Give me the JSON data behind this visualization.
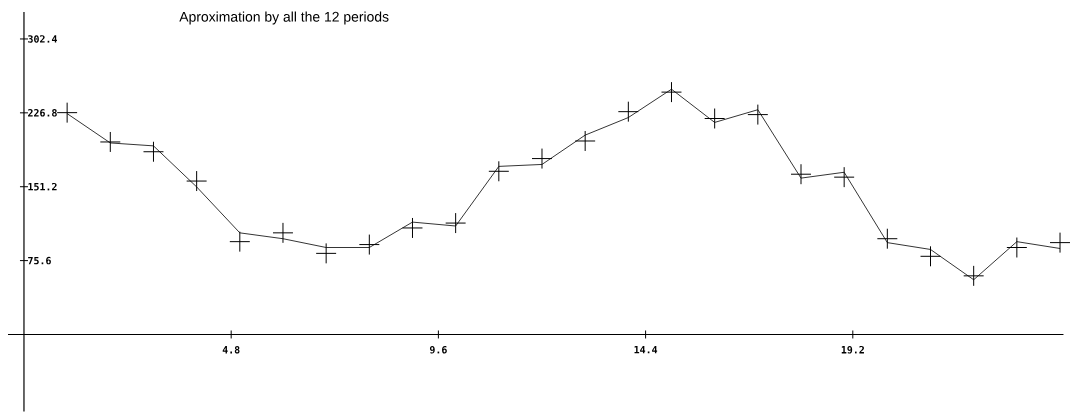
{
  "chart_data": {
    "type": "line",
    "title": "Aproximation by all the 12 periods",
    "x": [
      1,
      2,
      3,
      4,
      5,
      6,
      7,
      8,
      9,
      10,
      11,
      12,
      13,
      14,
      15,
      16,
      17,
      18,
      19,
      20,
      21,
      22,
      23,
      24
    ],
    "series": [
      {
        "color": "#000000",
        "values": [
          226,
          196,
          193,
          151,
          104,
          98,
          89,
          89,
          115,
          111,
          172,
          174,
          204,
          222,
          251,
          217,
          230,
          160,
          166,
          94,
          87,
          56,
          95,
          88
        ]
      },
      {
        "type": "scatter",
        "marker": "cross",
        "color": "#000000",
        "values": [
          227,
          197,
          187,
          157,
          95,
          104,
          83,
          92,
          109,
          114,
          167,
          180,
          198,
          228,
          248,
          221,
          225,
          164,
          161,
          98,
          80,
          60,
          89,
          94
        ]
      }
    ],
    "xlim": [
      -0.37,
      24.08
    ],
    "ylim": [
      -78.7,
      330
    ],
    "xticks": [
      4.8,
      9.6,
      14.4,
      19.2
    ],
    "yticks": [
      75.6,
      151.2,
      226.8,
      302.4
    ]
  }
}
